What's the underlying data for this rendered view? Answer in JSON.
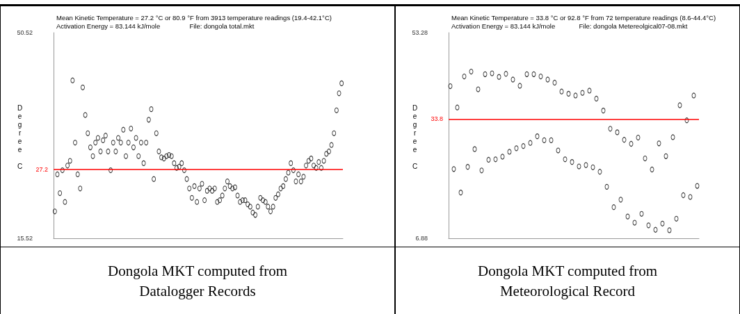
{
  "chart_data": [
    {
      "type": "scatter",
      "title": "Mean Kinetic Temperature = 27.2 °C or 80.9 °F from 3913 temperature readings (19.4-42.1°C)",
      "subtitle": "Activation Energy = 83.144 kJ/mole                File: dongola total.mkt",
      "ylabel": "Degree C",
      "categories": [
        null,
        null,
        null,
        null,
        null,
        null,
        null,
        null,
        null,
        null,
        null,
        null,
        null,
        null,
        null,
        null,
        null,
        null,
        null,
        null,
        null,
        null,
        null,
        null,
        null,
        null,
        null,
        null,
        null,
        null,
        null,
        null,
        null,
        null,
        null,
        null,
        null,
        null,
        null,
        null,
        null,
        null,
        null,
        null,
        null,
        null,
        null,
        null,
        null,
        null,
        null,
        null,
        null,
        null,
        null,
        null,
        null,
        null,
        null,
        null,
        null,
        null,
        null,
        null,
        null,
        null,
        null,
        null,
        null,
        null,
        null,
        null,
        null,
        null,
        null,
        null,
        null,
        null,
        null,
        null,
        null,
        null,
        null,
        null,
        null,
        null,
        null,
        null,
        null,
        null,
        null,
        null,
        null,
        null,
        null,
        null,
        null,
        null,
        null,
        null,
        null,
        null,
        null,
        null,
        null,
        null,
        null,
        null,
        null,
        null,
        null,
        null,
        null,
        null
      ],
      "series": [
        {
          "color": "#000000",
          "values": [
            20.1,
            26.4,
            23.2,
            27.1,
            21.7,
            27.9,
            28.7,
            42.4,
            31.8,
            26.4,
            24.0,
            41.2,
            36.5,
            33.4,
            31.0,
            29.5,
            31.8,
            32.6,
            30.3,
            32.2,
            33.0,
            30.3,
            27.1,
            31.8,
            30.3,
            32.6,
            31.8,
            34.0,
            29.5,
            31.8,
            34.2,
            31.0,
            32.6,
            29.5,
            31.8,
            28.3,
            31.8,
            35.7,
            37.5,
            25.6,
            33.4,
            30.3,
            29.3,
            29.1,
            29.5,
            29.7,
            29.5,
            28.3,
            27.5,
            27.7,
            28.3,
            27.1,
            25.6,
            24.0,
            22.4,
            24.4,
            21.7,
            24.0,
            24.8,
            22.0,
            23.6,
            24.0,
            23.6,
            24.0,
            21.7,
            22.0,
            22.8,
            24.0,
            25.2,
            24.4,
            24.0,
            24.2,
            22.8,
            21.7,
            22.0,
            22.0,
            21.3,
            20.9,
            19.9,
            19.5,
            20.9,
            22.4,
            22.0,
            21.7,
            20.9,
            20.1,
            20.9,
            22.4,
            23.0,
            24.0,
            24.4,
            25.6,
            26.7,
            28.3,
            27.1,
            25.2,
            26.4,
            25.2,
            26.0,
            27.9,
            28.7,
            29.1,
            27.9,
            27.5,
            28.5,
            27.5,
            28.7,
            29.9,
            30.3,
            31.4,
            33.4,
            37.3,
            40.2,
            41.9
          ]
        }
      ],
      "ylim": [
        15.52,
        50.52
      ],
      "yticks": [
        15.52,
        50.52
      ],
      "tick_labels": "y",
      "marker": "circle",
      "grid": false,
      "ref_lines": [
        {
          "axis": "y",
          "value": 27.2,
          "label": "27.2",
          "color": "#ff0000"
        }
      ],
      "annotations": [
        "Dongola MKT computed from Datalogger Records"
      ]
    },
    {
      "type": "scatter",
      "title": "Mean Kinetic Temperature = 33.8 °C or 92.8 °F from 72 temperature readings (8.6-44.4°C)",
      "subtitle": "Activation Energy = 83.144 kJ/mole             File: dongola Metereolgical07-08.mkt",
      "ylabel": "Degree C",
      "categories": [
        null,
        null,
        null,
        null,
        null,
        null,
        null,
        null,
        null,
        null,
        null,
        null,
        null,
        null,
        null,
        null,
        null,
        null,
        null,
        null,
        null,
        null,
        null,
        null,
        null,
        null,
        null,
        null,
        null,
        null,
        null,
        null,
        null,
        null,
        null,
        null,
        null,
        null,
        null,
        null,
        null,
        null,
        null,
        null,
        null,
        null,
        null,
        null,
        null,
        null,
        null,
        null,
        null,
        null,
        null,
        null,
        null,
        null,
        null,
        null,
        null,
        null,
        null,
        null,
        null,
        null,
        null,
        null,
        null,
        null,
        null,
        null
      ],
      "series": [
        {
          "color": "#000000",
          "values": [
            41.2,
            22.5,
            36.4,
            17.2,
            43.4,
            23.0,
            44.5,
            27.0,
            40.5,
            22.2,
            43.9,
            24.6,
            44.1,
            24.7,
            43.3,
            25.3,
            44.0,
            26.4,
            42.7,
            27.2,
            41.3,
            27.7,
            43.9,
            28.4,
            43.9,
            29.9,
            43.4,
            29.0,
            42.7,
            29.0,
            42.0,
            26.7,
            40.0,
            24.7,
            39.5,
            24.1,
            39.1,
            23.1,
            39.7,
            23.4,
            40.2,
            22.9,
            38.4,
            21.9,
            35.7,
            18.5,
            31.6,
            13.9,
            30.8,
            15.6,
            29.1,
            11.8,
            28.2,
            10.4,
            29.6,
            12.4,
            24.9,
            9.8,
            22.4,
            8.8,
            28.3,
            10.2,
            25.4,
            8.7,
            29.7,
            11.3,
            36.9,
            16.6,
            33.5,
            16.2,
            39.1,
            18.7
          ]
        }
      ],
      "ylim": [
        6.88,
        53.28
      ],
      "yticks": [
        6.88,
        53.28
      ],
      "tick_labels": "y",
      "marker": "circle",
      "grid": false,
      "ref_lines": [
        {
          "axis": "y",
          "value": 33.8,
          "label": "33.8",
          "color": "#ff0000"
        }
      ],
      "annotations": [
        "Dongola MKT computed from Meteorological Record"
      ]
    }
  ]
}
